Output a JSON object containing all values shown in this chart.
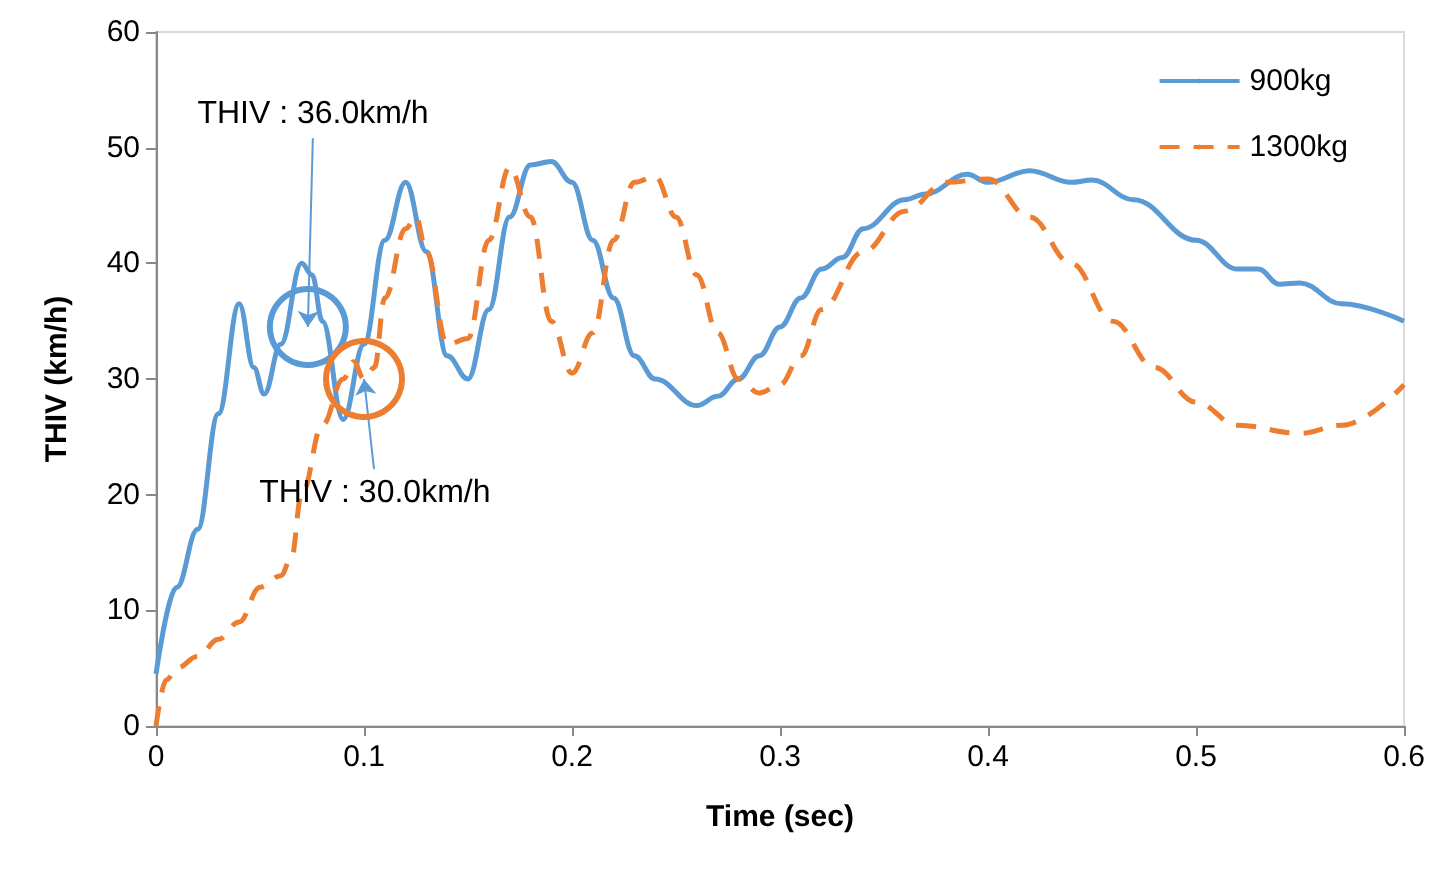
{
  "chart_data": {
    "type": "line",
    "xlabel": "Time (sec)",
    "ylabel": "THIV (km/h)",
    "xlim": [
      0,
      0.6
    ],
    "xticks": [
      0,
      0.1,
      0.2,
      0.3,
      0.4,
      0.5,
      0.6
    ],
    "ylim": [
      0,
      60
    ],
    "yticks": [
      0,
      10,
      20,
      30,
      40,
      50,
      60
    ],
    "grid": false,
    "legend": "top right",
    "marker": "none",
    "series": [
      {
        "name": "900kg",
        "color": "#5b9bd5",
        "line_style": "solid",
        "x": [
          0,
          0.01,
          0.02,
          0.03,
          0.04,
          0.047,
          0.052,
          0.06,
          0.07,
          0.075,
          0.08,
          0.09,
          0.1,
          0.11,
          0.12,
          0.13,
          0.14,
          0.15,
          0.16,
          0.17,
          0.18,
          0.19,
          0.2,
          0.21,
          0.22,
          0.23,
          0.24,
          0.26,
          0.27,
          0.28,
          0.29,
          0.3,
          0.31,
          0.32,
          0.33,
          0.34,
          0.36,
          0.37,
          0.39,
          0.4,
          0.42,
          0.44,
          0.45,
          0.47,
          0.5,
          0.52,
          0.53,
          0.54,
          0.55,
          0.57,
          0.6
        ],
        "values": [
          4.5,
          12,
          17,
          27,
          36.5,
          31,
          28.7,
          33,
          40,
          39,
          35,
          26.5,
          33,
          42,
          47,
          41,
          32,
          30,
          36,
          44,
          48.5,
          48.8,
          47,
          42,
          37,
          32,
          30,
          27.7,
          28.5,
          30,
          32,
          34.5,
          37,
          39.5,
          40.5,
          43,
          45.5,
          46,
          47.7,
          47,
          48,
          47,
          47.2,
          45.5,
          42,
          39.5,
          39.5,
          38.2,
          38.3,
          36.5,
          35
        ]
      },
      {
        "name": "1300kg",
        "color": "#ed7d31",
        "line_style": "dashed",
        "x": [
          0,
          0.005,
          0.01,
          0.02,
          0.03,
          0.04,
          0.05,
          0.06,
          0.065,
          0.07,
          0.08,
          0.09,
          0.095,
          0.1,
          0.105,
          0.11,
          0.12,
          0.125,
          0.13,
          0.14,
          0.15,
          0.16,
          0.17,
          0.18,
          0.19,
          0.2,
          0.21,
          0.22,
          0.23,
          0.24,
          0.25,
          0.26,
          0.27,
          0.28,
          0.29,
          0.3,
          0.31,
          0.32,
          0.34,
          0.36,
          0.38,
          0.4,
          0.42,
          0.44,
          0.46,
          0.48,
          0.5,
          0.52,
          0.55,
          0.57,
          0.6
        ],
        "values": [
          0,
          4,
          5,
          6,
          7.5,
          9,
          12,
          13,
          14.5,
          20,
          26,
          30,
          31.5,
          30,
          31,
          37,
          43,
          44,
          41,
          33,
          33.5,
          42,
          48.3,
          44,
          35,
          30.5,
          34,
          42,
          47,
          47.5,
          44,
          39,
          34,
          30,
          28.8,
          29.5,
          32,
          36,
          41,
          44.5,
          47,
          47.3,
          44,
          40,
          35,
          31,
          28,
          26,
          25.3,
          26,
          29.5
        ]
      }
    ],
    "annotations": [
      {
        "text": "THIV : 36.0km/h",
        "x": 0.073,
        "y": 34.5
      },
      {
        "text": "THIV : 30.0km/h",
        "x": 0.1,
        "y": 30
      }
    ]
  }
}
